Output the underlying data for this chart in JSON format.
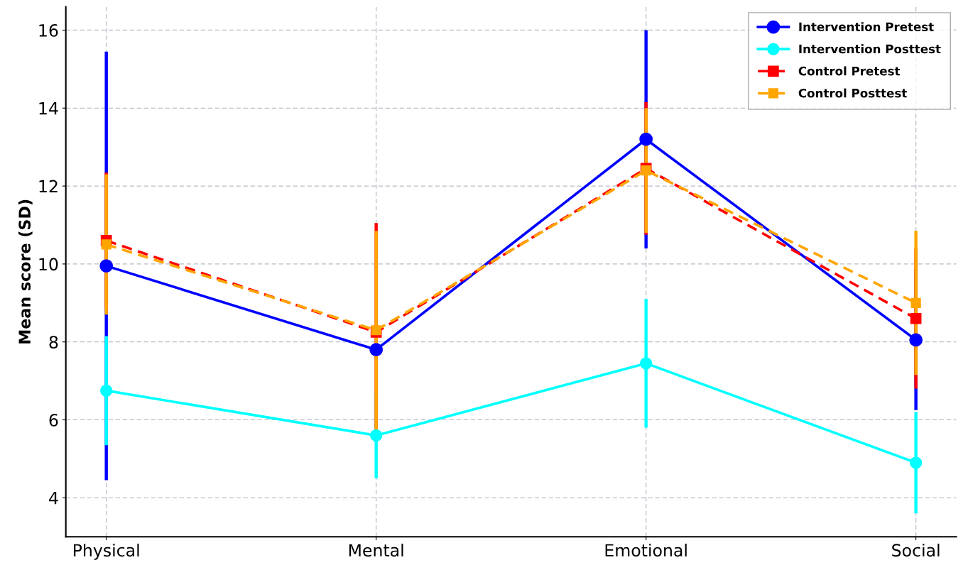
{
  "chart_data": {
    "type": "line",
    "ylabel": "Mean score (SD)",
    "categories": [
      "Physical",
      "Mental",
      "Emotional",
      "Social"
    ],
    "series": [
      {
        "name": "Intervention Pretest",
        "color": "#0000ff",
        "values": [
          9.95,
          7.8,
          13.2,
          8.05
        ],
        "errors": [
          5.5,
          null,
          2.8,
          1.8
        ],
        "marker": "circle",
        "line_style": "solid"
      },
      {
        "name": "Intervention Posttest",
        "color": "#00ffff",
        "values": [
          6.75,
          5.6,
          7.45,
          4.9
        ],
        "errors": [
          1.4,
          1.1,
          1.65,
          1.3
        ],
        "marker": "circle",
        "line_style": "solid"
      },
      {
        "name": "Control Pretest",
        "color": "#ff0000",
        "values": [
          10.6,
          8.25,
          12.45,
          8.6
        ],
        "errors": [
          1.75,
          2.8,
          1.7,
          1.8
        ],
        "marker": "square",
        "line_style": "dashed"
      },
      {
        "name": "Control Posttest",
        "color": "#ffa500",
        "values": [
          10.5,
          8.3,
          12.4,
          9.0
        ],
        "errors": [
          1.8,
          2.55,
          1.6,
          1.85
        ],
        "marker": "square",
        "line_style": "dashed"
      }
    ],
    "ylim": [
      3,
      16.6
    ],
    "yticks": [
      4,
      6,
      8,
      10,
      12,
      14,
      16
    ],
    "grid": true,
    "legend": "top right"
  }
}
